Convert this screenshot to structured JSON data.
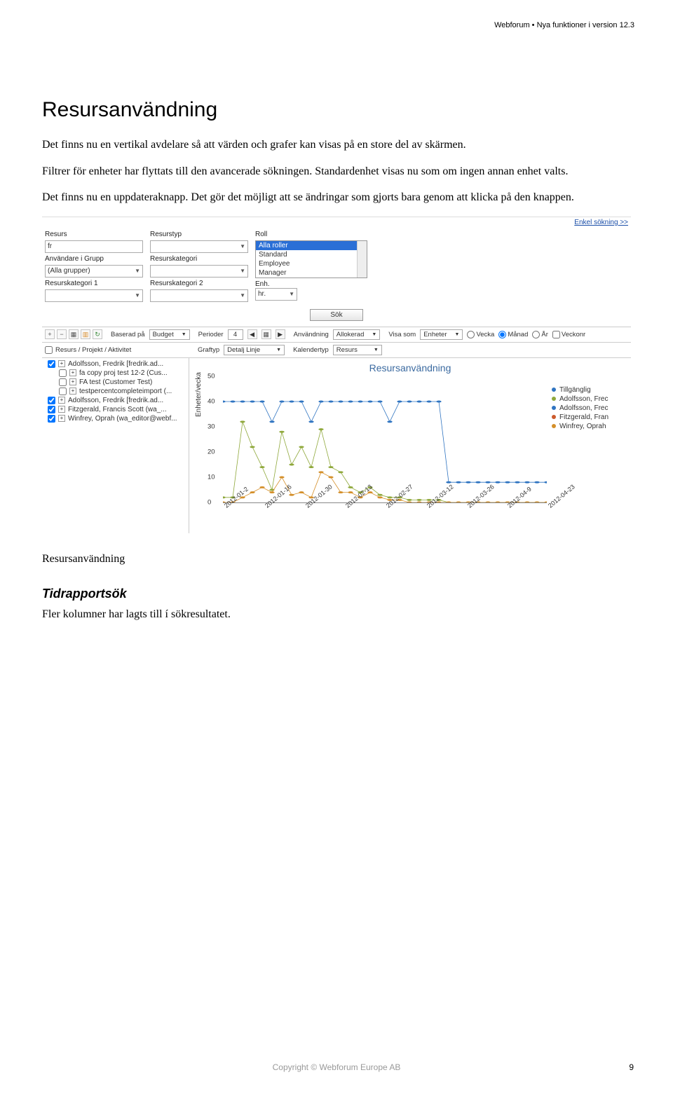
{
  "header_right": "Webforum • Nya funktioner i version 12.3",
  "h1": "Resursanvändning",
  "para1": "Det finns nu en vertikal avdelare så att värden och grafer kan visas på en store del av skärmen.",
  "para2": "Filtrer för enheter har flyttats till den avancerade sökningen. Standardenhet visas nu som om ingen annan enhet valts.",
  "para3": "Det finns nu en uppdateraknapp. Det gör det möjligt att se ändringar som gjorts bara genom att klicka på den knappen.",
  "ss": {
    "toplink": "Enkel sökning >>",
    "labels": {
      "resurs": "Resurs",
      "resurstyp": "Resurstyp",
      "roll": "Roll",
      "anvgrupp": "Användare i Grupp",
      "resurskat": "Resurskategori",
      "resurskat1": "Resurskategori 1",
      "resurskat2": "Resurskategori 2",
      "enh": "Enh."
    },
    "values": {
      "resurs": "fr",
      "anvgrupp": "(Alla grupper)",
      "enh": "hr."
    },
    "roll_options": [
      "Alla roller",
      "Standard",
      "Employee",
      "Manager"
    ],
    "sok": "Sök",
    "toolbar": {
      "baserad": "Baserad på",
      "baserad_val": "Budget",
      "perioder": "Perioder",
      "perioder_val": "4",
      "anvandning": "Användning",
      "anvandning_val": "Allokerad",
      "visasom": "Visa som",
      "visasom_val": "Enheter",
      "period_opts": [
        "Vecka",
        "Månad",
        "År",
        "Veckonr"
      ],
      "period_selected": 1
    },
    "row2": {
      "col_header": "Resurs / Projekt / Aktivitet",
      "graftyp": "Graftyp",
      "graftyp_val": "Detalj Linje",
      "kalendertyp": "Kalendertyp",
      "kalendertyp_val": "Resurs"
    },
    "tree": [
      {
        "indent": 0,
        "checked": true,
        "exp": true,
        "label": "Adolfsson, Fredrik [fredrik.ad..."
      },
      {
        "indent": 1,
        "checked": false,
        "exp": true,
        "label": "fa copy proj test 12-2 (Cus..."
      },
      {
        "indent": 1,
        "checked": false,
        "exp": true,
        "label": "FA test (Customer Test)"
      },
      {
        "indent": 1,
        "checked": false,
        "exp": true,
        "label": "testpercentcompleteimport (..."
      },
      {
        "indent": 0,
        "checked": true,
        "exp": true,
        "label": "Adolfsson, Fredrik [fredrik.ad..."
      },
      {
        "indent": 0,
        "checked": true,
        "exp": true,
        "label": "Fitzgerald, Francis Scott (wa_..."
      },
      {
        "indent": 0,
        "checked": true,
        "exp": true,
        "label": "Winfrey, Oprah (wa_editor@webf..."
      }
    ],
    "chart": {
      "title": "Resursanvändning",
      "ylabel": "Enheter/vecka",
      "ylim": [
        0,
        50
      ],
      "ytick_step": 10,
      "x_labels": [
        "2012-01-2",
        "2012-01-16",
        "2012-01-30",
        "2012-02-13",
        "2012-02-27",
        "2012-03-12",
        "2012-03-26",
        "2012-04-9",
        "2012-04-23"
      ],
      "legend": [
        {
          "label": "Tillgänglig",
          "color": "#2f74c1",
          "marker": "circle"
        },
        {
          "label": "Adolfsson, Frec",
          "color": "#8fa83b",
          "marker": "diamond"
        },
        {
          "label": "Adolfsson, Frec",
          "color": "#2f74c1",
          "marker": "triangle"
        },
        {
          "label": "Fitzgerald, Fran",
          "color": "#cc5a2c",
          "marker": "star"
        },
        {
          "label": "Winfrey, Oprah",
          "color": "#d48f2a",
          "marker": "square"
        }
      ],
      "series": {
        "tillganglig": {
          "color": "#2f74c1",
          "marker": "circle",
          "values": [
            40,
            40,
            40,
            40,
            40,
            32,
            40,
            40,
            40,
            32,
            40,
            40,
            40,
            40,
            40,
            40,
            40,
            32,
            40,
            40,
            40,
            40,
            40,
            8,
            8,
            8,
            8,
            8,
            8,
            8,
            8,
            8,
            8,
            8
          ]
        },
        "adolfsson1": {
          "color": "#8fa83b",
          "marker": "diamond",
          "values": [
            2,
            2,
            32,
            22,
            14,
            5,
            28,
            15,
            22,
            14,
            29,
            14,
            12,
            6,
            4,
            6,
            3,
            2,
            2,
            1,
            1,
            1,
            1,
            0,
            0,
            0,
            0,
            0,
            0,
            0,
            0,
            0,
            0,
            0
          ]
        },
        "winfrey": {
          "color": "#d48f2a",
          "marker": "square",
          "values": [
            0,
            0,
            2,
            4,
            6,
            4,
            10,
            3,
            4,
            2,
            12,
            10,
            4,
            4,
            2,
            4,
            2,
            1,
            1,
            0,
            0,
            0,
            0,
            0,
            0,
            0,
            0,
            0,
            0,
            0,
            0,
            0,
            0,
            0
          ]
        }
      }
    }
  },
  "caption": "Resursanvändning",
  "h2": "Tidrapportsök",
  "para4": "Fler kolumner har lagts till í sökresultatet.",
  "footer": "Copyright © Webforum Europe AB",
  "pagenum": "9"
}
